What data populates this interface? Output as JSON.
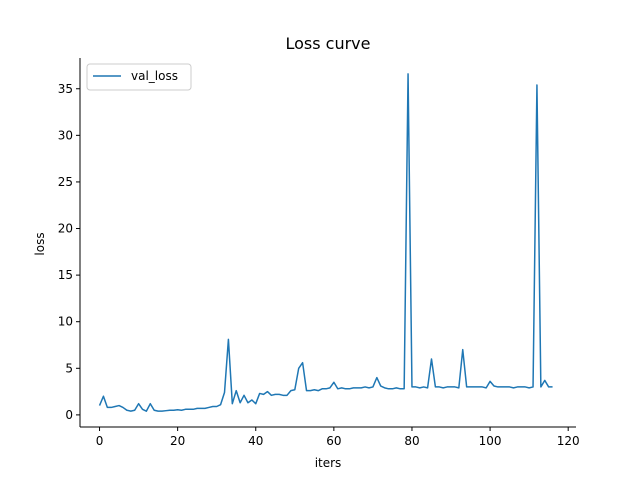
{
  "chart_data": {
    "type": "line",
    "title": "Loss curve",
    "xlabel": "iters",
    "ylabel": "loss",
    "xlim": [
      -5,
      122
    ],
    "ylim": [
      -1.3,
      38.3
    ],
    "xticks": [
      0,
      20,
      40,
      60,
      80,
      100,
      120
    ],
    "yticks": [
      0,
      5,
      10,
      15,
      20,
      25,
      30,
      35
    ],
    "legend": "top-left",
    "grid": false,
    "series": [
      {
        "name": "val_loss",
        "color": "#1f77b4",
        "x": [
          0,
          1,
          2,
          3,
          4,
          5,
          6,
          7,
          8,
          9,
          10,
          11,
          12,
          13,
          14,
          15,
          16,
          17,
          18,
          19,
          20,
          21,
          22,
          23,
          24,
          25,
          26,
          27,
          28,
          29,
          30,
          31,
          32,
          33,
          34,
          35,
          36,
          37,
          38,
          39,
          40,
          41,
          42,
          43,
          44,
          45,
          46,
          47,
          48,
          49,
          50,
          51,
          52,
          53,
          54,
          55,
          56,
          57,
          58,
          59,
          60,
          61,
          62,
          63,
          64,
          65,
          66,
          67,
          68,
          69,
          70,
          71,
          72,
          73,
          74,
          75,
          76,
          77,
          78,
          79,
          80,
          81,
          82,
          83,
          84,
          85,
          86,
          87,
          88,
          89,
          90,
          91,
          92,
          93,
          94,
          95,
          96,
          97,
          98,
          99,
          100,
          101,
          102,
          103,
          104,
          105,
          106,
          107,
          108,
          109,
          110,
          111,
          112,
          113,
          114,
          115,
          116
        ],
        "y": [
          1.0,
          2.0,
          0.8,
          0.8,
          0.9,
          1.0,
          0.8,
          0.5,
          0.4,
          0.5,
          1.2,
          0.6,
          0.4,
          1.2,
          0.5,
          0.4,
          0.4,
          0.45,
          0.5,
          0.5,
          0.55,
          0.5,
          0.6,
          0.6,
          0.6,
          0.7,
          0.7,
          0.7,
          0.8,
          0.9,
          0.9,
          1.1,
          2.4,
          8.1,
          1.2,
          2.6,
          1.3,
          2.1,
          1.3,
          1.6,
          1.2,
          2.3,
          2.2,
          2.5,
          2.1,
          2.2,
          2.2,
          2.1,
          2.1,
          2.6,
          2.7,
          5.0,
          5.6,
          2.6,
          2.6,
          2.7,
          2.6,
          2.8,
          2.8,
          2.9,
          3.5,
          2.8,
          2.9,
          2.8,
          2.8,
          2.9,
          2.9,
          2.9,
          3.0,
          2.9,
          3.0,
          4.0,
          3.1,
          2.9,
          2.8,
          2.8,
          2.9,
          2.8,
          2.8,
          36.6,
          3.0,
          3.0,
          2.9,
          3.0,
          2.9,
          6.0,
          3.0,
          3.0,
          2.9,
          3.0,
          3.0,
          3.0,
          2.9,
          7.0,
          3.0,
          3.0,
          3.0,
          3.0,
          3.0,
          2.9,
          3.6,
          3.1,
          3.0,
          3.0,
          3.0,
          3.0,
          2.9,
          3.0,
          3.0,
          3.0,
          2.9,
          3.0,
          35.4,
          3.0,
          3.7,
          3.0,
          3.0
        ]
      }
    ]
  }
}
